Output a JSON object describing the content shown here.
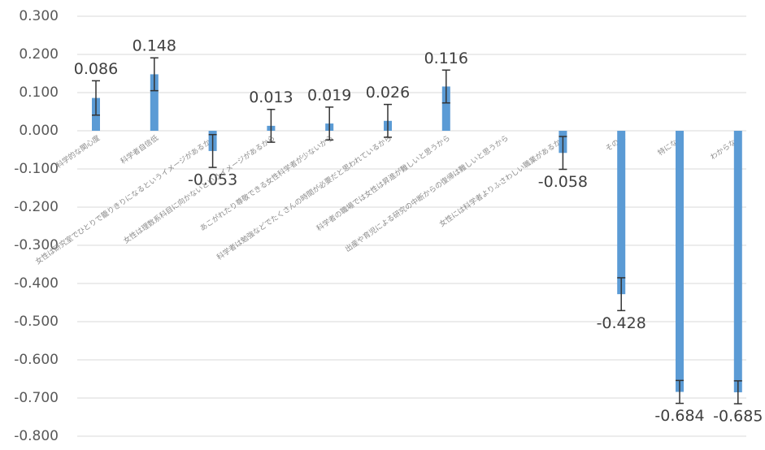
{
  "chart_data": {
    "type": "bar",
    "categories": [
      "科学的な関心度",
      "科学者自信低",
      "女性は研究室でひとりで籠りきりになるというイメージがあるから",
      "女性は理数系科目に向かないというイメージがあるから",
      "あこがれたり尊敬できる女性科学者が少ないから",
      "科学者は勉強などでたくさんの時間が必要だと思われているから",
      "科学者の職場では女性は昇進が難しいと思うから",
      "出産や育児による研究の中断からの復帰は難しいと思うから",
      "女性には科学者よりふさわしい職業があるから",
      "その他",
      "特になし",
      "わからない"
    ],
    "values": [
      0.086,
      0.148,
      -0.053,
      0.013,
      0.019,
      0.026,
      0.116,
      null,
      -0.058,
      -0.428,
      -0.684,
      -0.685
    ],
    "errors": [
      0.045,
      0.043,
      0.043,
      0.043,
      0.043,
      0.043,
      0.043,
      null,
      0.043,
      0.043,
      0.03,
      0.03
    ],
    "color": "#5b9bd5",
    "ylim": [
      -0.8,
      0.3
    ],
    "yticks": [
      {
        "value": -0.8,
        "label": "-0.800"
      },
      {
        "value": -0.7,
        "label": "-0.700"
      },
      {
        "value": -0.6,
        "label": "-0.600"
      },
      {
        "value": -0.5,
        "label": "-0.500"
      },
      {
        "value": -0.4,
        "label": "-0.400"
      },
      {
        "value": -0.3,
        "label": "-0.300"
      },
      {
        "value": -0.2,
        "label": "-0.200"
      },
      {
        "value": -0.1,
        "label": "-0.100"
      },
      {
        "value": 0,
        "label": "0.000"
      },
      {
        "value": 0.1,
        "label": "0.100"
      },
      {
        "value": 0.2,
        "label": "0.200"
      },
      {
        "value": 0.3,
        "label": "0.300"
      }
    ],
    "grid": true
  }
}
